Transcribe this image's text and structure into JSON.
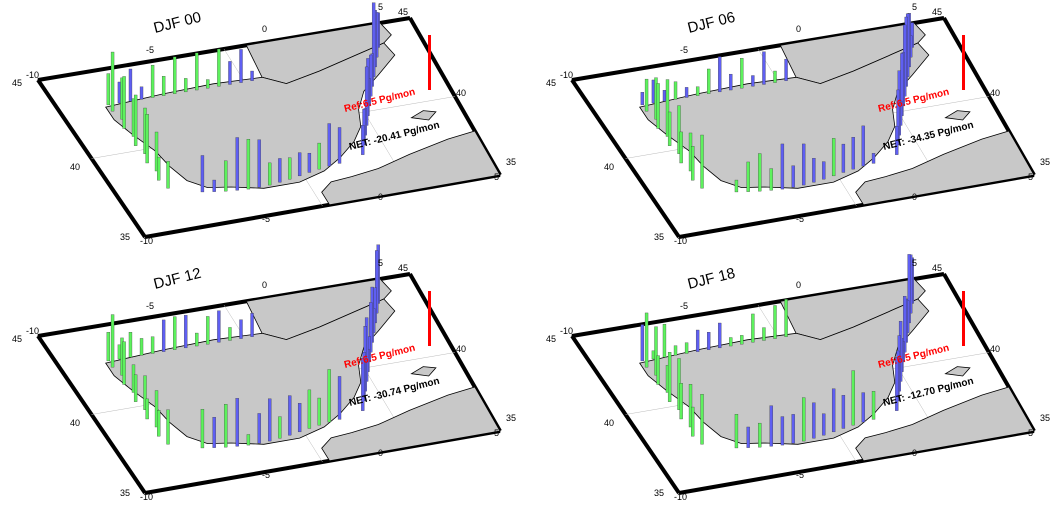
{
  "colors": {
    "land": "#c8c8c8",
    "frame": "#000000",
    "bar_green": "#5df25d",
    "bar_blue": "#5f5ff2",
    "reference": "#ff0000",
    "net_text": "#000000"
  },
  "tick_labels": {
    "lon_w10": "-10",
    "lon_w5": "-5",
    "lon_0": "0",
    "lon_e5": "5",
    "lat_35": "35",
    "lat_40": "40",
    "lat_45": "45"
  },
  "panels": [
    {
      "title": "DJF 00",
      "reference": "Ref:6.5 Pg/mon",
      "net": "NET: -20.41 Pg/mon"
    },
    {
      "title": "DJF 06",
      "reference": "Ref:6.5 Pg/mon",
      "net": "NET: -34.35 Pg/mon"
    },
    {
      "title": "DJF 12",
      "reference": "Ref:6.5 Pg/mon",
      "net": "NET: -30.74 Pg/mon"
    },
    {
      "title": "DJF 18",
      "reference": "Ref:6.5 Pg/mon",
      "net": "NET: -12.70 Pg/mon"
    }
  ]
}
